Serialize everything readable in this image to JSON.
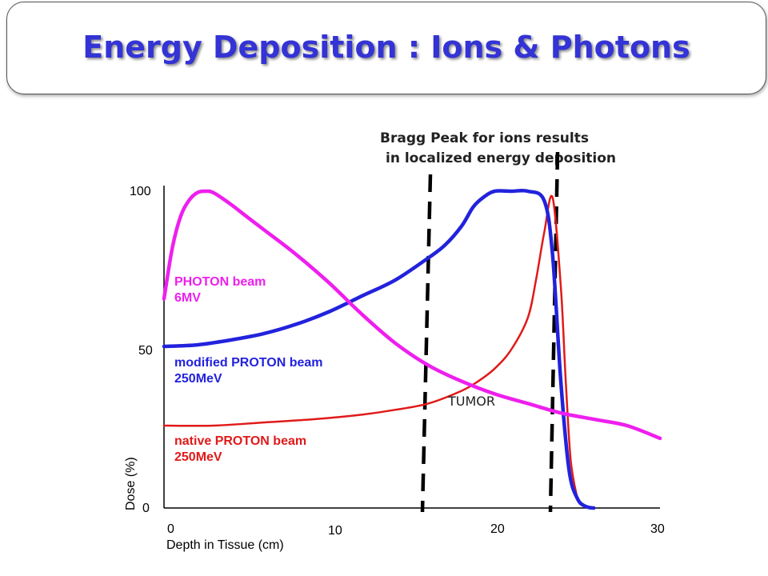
{
  "header": {
    "title": "Energy Deposition : Ions & Photons"
  },
  "annotation": {
    "line1": "Bragg Peak for ions results",
    "line2": "in localized energy deposition"
  },
  "tumor_label": "TUMOR",
  "chart_data": {
    "type": "line",
    "title": "",
    "xlabel": "Depth in Tissue (cm)",
    "ylabel": "Dose (%)",
    "xlim": [
      0,
      30
    ],
    "ylim": [
      0,
      100
    ],
    "xticks": [
      "0",
      "10",
      "20",
      "30"
    ],
    "yticks": [
      "100",
      "50",
      "0"
    ],
    "grid": false,
    "series": [
      {
        "name": "PHOTON beam 6MV",
        "label_lines": [
          "PHOTON beam",
          "6MV"
        ],
        "color": "#ee1fee",
        "x": [
          0,
          0.5,
          1,
          1.5,
          2,
          2.5,
          3,
          4,
          5,
          6,
          8,
          10,
          12,
          14,
          16,
          18,
          20,
          22,
          24,
          26,
          28,
          30
        ],
        "y": [
          66,
          82,
          92,
          97,
          99.5,
          100,
          99.5,
          96,
          92,
          88,
          80,
          71,
          61,
          52,
          45,
          40,
          36,
          33,
          30,
          28,
          26,
          22
        ]
      },
      {
        "name": "modified PROTON beam 250MeV",
        "label_lines": [
          "modified PROTON beam",
          "250MeV"
        ],
        "color": "#2222dd",
        "x": [
          0,
          2,
          4,
          6,
          8,
          10,
          12,
          14,
          16,
          17,
          18,
          18.7,
          19.3,
          20,
          21,
          22,
          23,
          23.5,
          24,
          24.5,
          25,
          25.5,
          26
        ],
        "y": [
          51,
          51.5,
          53,
          55,
          58,
          62,
          67,
          72,
          79,
          83,
          89,
          95,
          98,
          100,
          100,
          100,
          97,
          80,
          40,
          12,
          3,
          0.5,
          0
        ]
      },
      {
        "name": "native PROTON beam 250MeV",
        "label_lines": [
          "native PROTON beam",
          "250MeV"
        ],
        "color": "#e01a1a",
        "x": [
          0,
          3,
          6,
          9,
          12,
          14,
          16,
          18,
          19,
          20,
          21,
          22,
          22.5,
          23,
          23.5,
          24,
          24.3,
          24.6,
          25
        ],
        "y": [
          26,
          26,
          27,
          28,
          29.5,
          31,
          33,
          37,
          40,
          44,
          50,
          60,
          72,
          87,
          98,
          70,
          40,
          15,
          3
        ]
      }
    ]
  }
}
